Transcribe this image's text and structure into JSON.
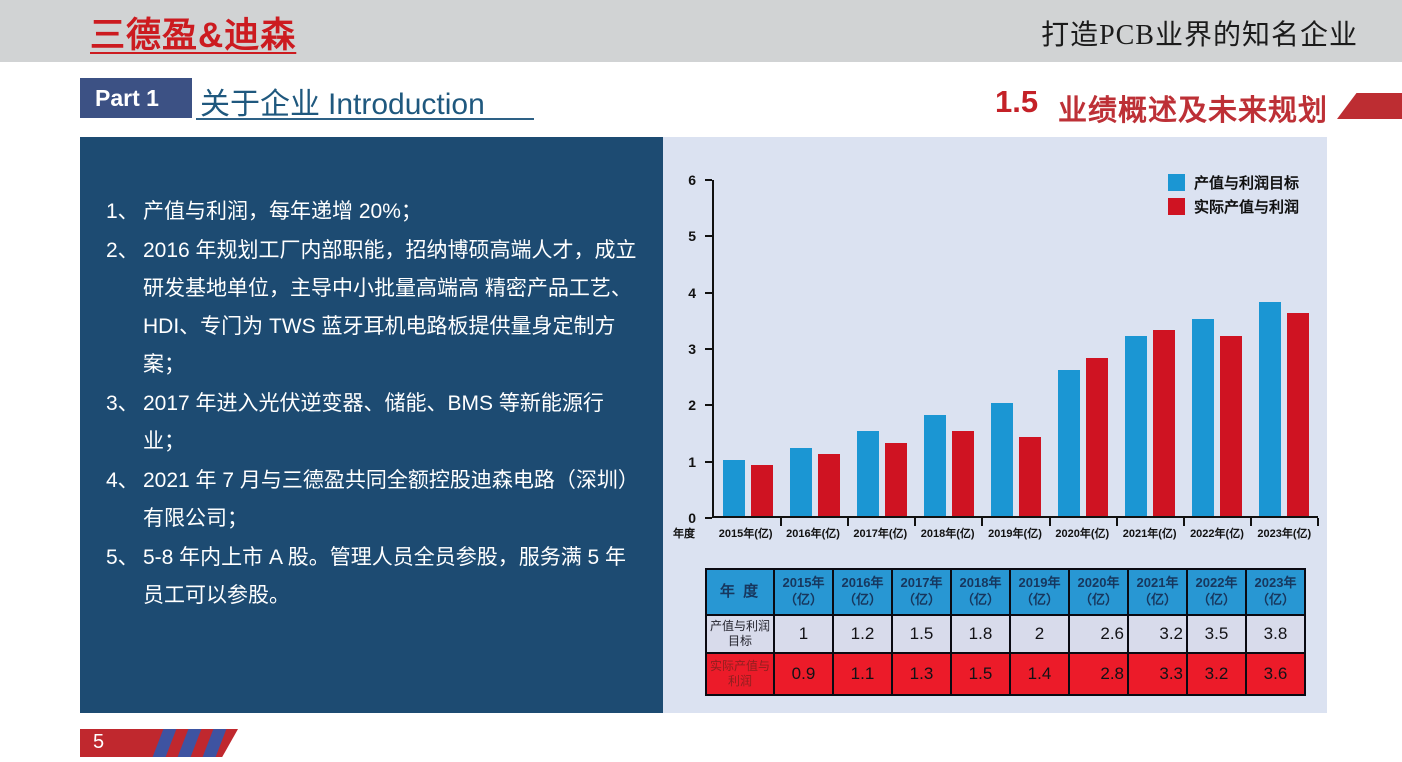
{
  "header": {
    "logo_text": "三德盈&迪森",
    "slogan": "打造PCB业界的知名企业"
  },
  "title_bar": {
    "part_badge": "Part 1",
    "title_cn": "关于企业",
    "title_en": "Introduction",
    "section_number": "1.5",
    "section_title": "业绩概述及未来规划"
  },
  "left_panel": {
    "items": [
      {
        "num": "1、",
        "text": "产值与利润，每年递增 20%；"
      },
      {
        "num": "2、",
        "text": "2016 年规划工厂内部职能，招纳博硕高端人才，成立研发基地单位，主导中小批量高端高 精密产品工艺、HDI、专门为 TWS 蓝牙耳机电路板提供量身定制方案；"
      },
      {
        "num": "3、",
        "text": "2017 年进入光伏逆变器、储能、BMS 等新能源行业；"
      },
      {
        "num": "4、",
        "text": "2021 年 7 月与三德盈共同全额控股迪森电路（深圳）有限公司；"
      },
      {
        "num": "5、",
        "text": "5-8 年内上市 A 股。管理人员全员参股，服务满 5 年员工可以参股。"
      }
    ]
  },
  "chart_data": {
    "type": "bar",
    "categories": [
      "2015年(亿)",
      "2016年(亿)",
      "2017年(亿)",
      "2018年(亿)",
      "2019年(亿)",
      "2020年(亿)",
      "2021年(亿)",
      "2022年(亿)",
      "2023年(亿)"
    ],
    "series": [
      {
        "name": "产值与利润目标",
        "color": "#1b96d3",
        "values": [
          1,
          1.2,
          1.5,
          1.8,
          2,
          2.6,
          3.2,
          3.5,
          3.8
        ]
      },
      {
        "name": "实际产值与利润",
        "color": "#cf1322",
        "values": [
          0.9,
          1.1,
          1.3,
          1.5,
          1.4,
          2.8,
          3.3,
          3.2,
          3.6
        ]
      }
    ],
    "xlabel": "年度",
    "ylabel": "",
    "ylim": [
      0,
      6
    ],
    "yticks": [
      0,
      1,
      2,
      3,
      4,
      5,
      6
    ],
    "grid": false,
    "legend_position": "top-right"
  },
  "table": {
    "header": [
      "年 度",
      "2015年\n（亿）",
      "2016年\n（亿）",
      "2017年\n（亿）",
      "2018年\n（亿）",
      "2019年\n（亿）",
      "2020年\n（亿）",
      "2021年\n（亿）",
      "2022年\n（亿）",
      "2023年\n（亿）"
    ],
    "rows": [
      {
        "label": "产值与利润\n目标",
        "values": [
          "1",
          "1.2",
          "1.5",
          "1.8",
          "2",
          "2.6",
          "3.2",
          "3.5",
          "3.8"
        ],
        "aligns": [
          "center",
          "center",
          "center",
          "center",
          "center",
          "right",
          "right",
          "center",
          "center"
        ]
      },
      {
        "label": "实际产值与\n利润",
        "values": [
          "0.9",
          "1.1",
          "1.3",
          "1.5",
          "1.4",
          "2.8",
          "3.3",
          "3.2",
          "3.6"
        ],
        "aligns": [
          "center",
          "center",
          "center",
          "center",
          "center",
          "right",
          "right",
          "center",
          "center"
        ]
      }
    ]
  },
  "footer": {
    "page_number": "5"
  },
  "colors": {
    "brand_red": "#cc1b20",
    "header_band_gray": "#d1d3d4",
    "navy_panel": "#1d4b72",
    "chart_panel": "#dbe2f1",
    "bar_blue": "#1b96d3",
    "bar_red": "#cf1322",
    "table_header_blue": "#2897d3",
    "table_row_light": "#d8dbeb",
    "table_row_red": "#ec1b29",
    "badge_navy": "#3c5184",
    "stripe_blue": "#3e53a1",
    "title_blue": "#1f587e",
    "section_red": "#bd3036"
  }
}
